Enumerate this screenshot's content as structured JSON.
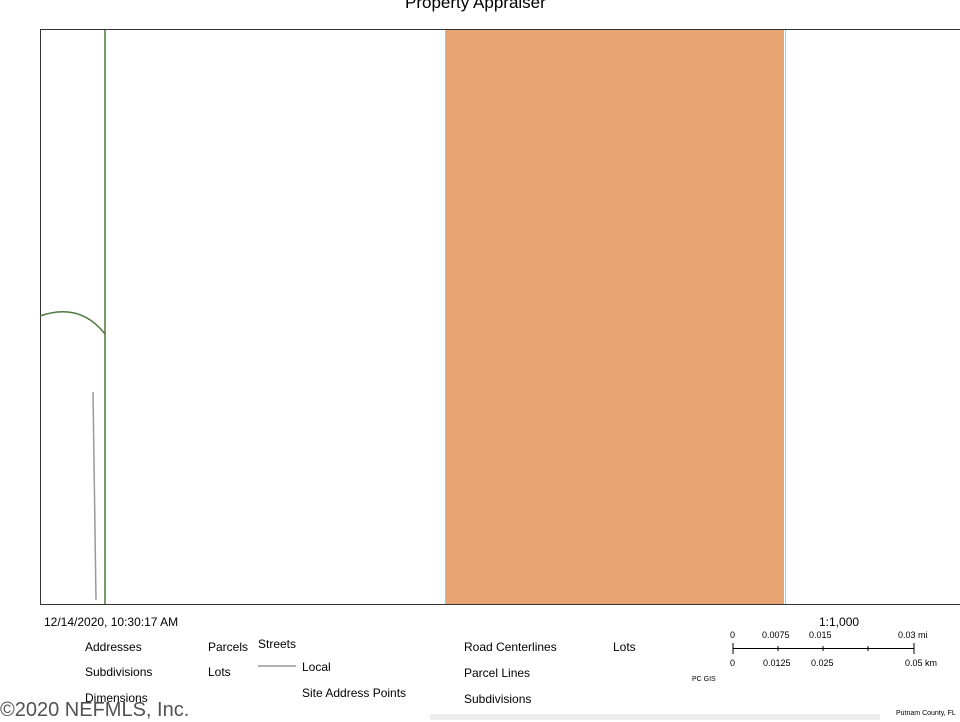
{
  "header": {
    "title": "Property Appraiser"
  },
  "footer": {
    "timestamp": "12/14/2020, 10:30:17 AM",
    "scale": "1:1,000",
    "legend": {
      "addresses": "Addresses",
      "subdivisions_1": "Subdivisions",
      "dimensions": "Dimensions",
      "parcels": "Parcels",
      "lots_1": "Lots",
      "streets": "Streets",
      "local": "Local",
      "site_address_points": "Site Address Points",
      "road_centerlines": "Road Centerlines",
      "parcel_lines": "Parcel Lines",
      "subdivisions_2": "Subdivisions",
      "lots_2": "Lots"
    },
    "scale_bar": {
      "miles": [
        "0",
        "0.0075",
        "0.015",
        "0.03 mi"
      ],
      "km": [
        "0",
        "0.0125",
        "0.025",
        "0.05 km"
      ]
    },
    "source": "PC GIS",
    "county": "Putnam County, FL"
  },
  "watermark": "©2020 NEFMLS, Inc."
}
